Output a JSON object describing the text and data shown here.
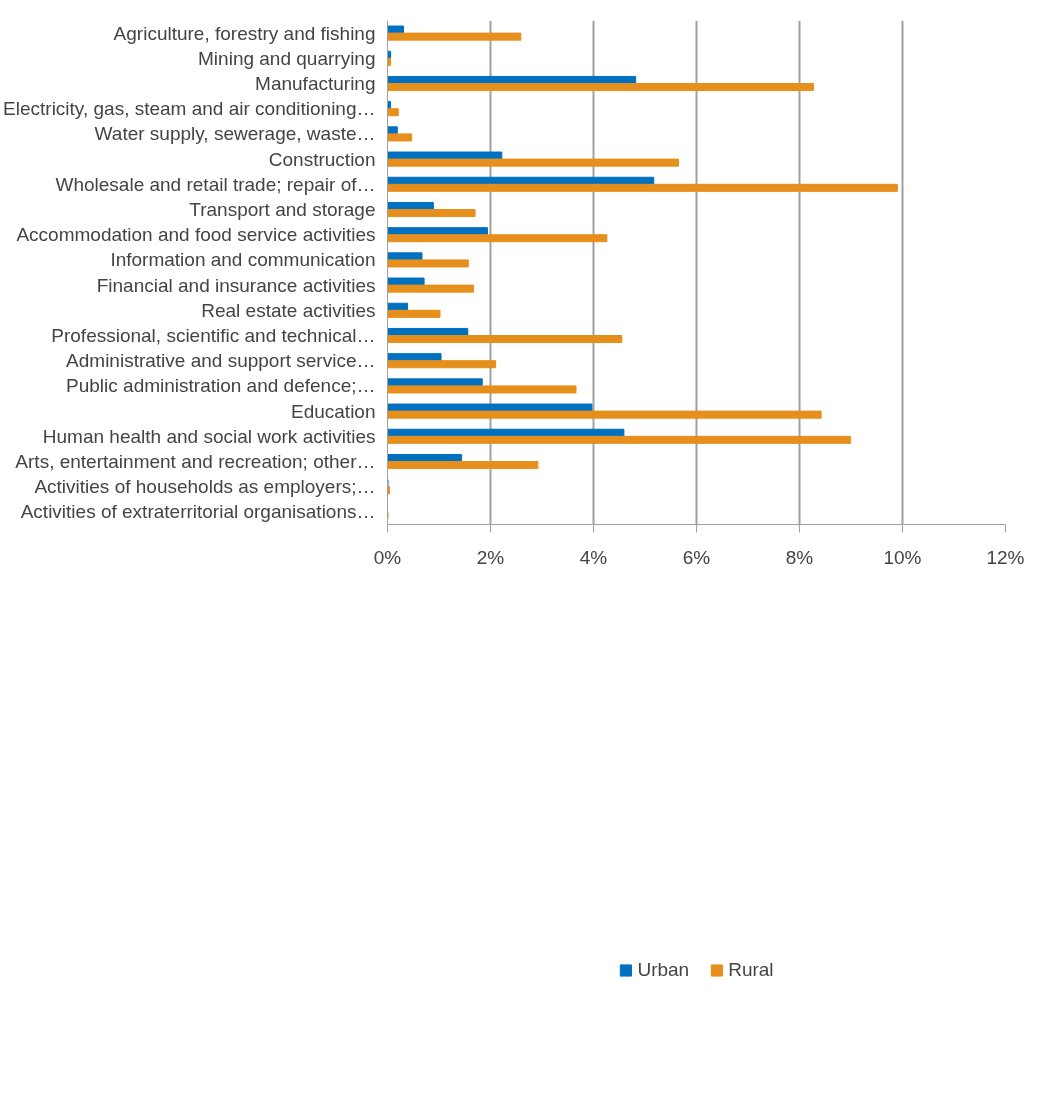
{
  "chart_data": {
    "type": "bar",
    "orientation": "horizontal",
    "categories": [
      "Agriculture, forestry and fishing",
      "Mining and quarrying",
      "Manufacturing",
      "Electricity, gas, steam and air conditioning…",
      "Water supply, sewerage, waste…",
      "Construction",
      "Wholesale and retail trade; repair of…",
      "Transport and storage",
      "Accommodation and food service activities",
      "Information and communication",
      "Financial and insurance activities",
      "Real estate activities",
      "Professional, scientific and technical…",
      "Administrative and support service…",
      "Public administration and defence;…",
      "Education",
      "Human health and social work activities",
      "Arts, entertainment and recreation; other…",
      "Activities of households as employers;…",
      "Activities of extraterritorial organisations…"
    ],
    "series": [
      {
        "name": "Urban",
        "color": "#0070c0",
        "values": [
          0.31,
          0.06,
          4.82,
          0.06,
          0.19,
          2.22,
          5.17,
          0.89,
          1.94,
          0.67,
          0.71,
          0.39,
          1.56,
          1.04,
          1.84,
          3.97,
          4.59,
          1.44,
          0.01,
          null
        ]
      },
      {
        "name": "Rural",
        "color": "#e68f1c",
        "values": [
          2.59,
          0.06,
          8.27,
          0.21,
          0.47,
          5.65,
          9.9,
          1.7,
          4.26,
          1.57,
          1.67,
          1.02,
          4.55,
          2.1,
          3.66,
          8.42,
          8.99,
          2.92,
          0.04,
          0.01
        ]
      }
    ],
    "xlim": [
      0,
      12
    ],
    "xticks": [
      {
        "value": 0,
        "label": "0%"
      },
      {
        "value": 2,
        "label": "2%"
      },
      {
        "value": 4,
        "label": "4%"
      },
      {
        "value": 6,
        "label": "6%"
      },
      {
        "value": 8,
        "label": "8%"
      },
      {
        "value": 10,
        "label": "10%"
      },
      {
        "value": 12,
        "label": "12%"
      }
    ],
    "grid": "x",
    "legend": "bottom"
  }
}
